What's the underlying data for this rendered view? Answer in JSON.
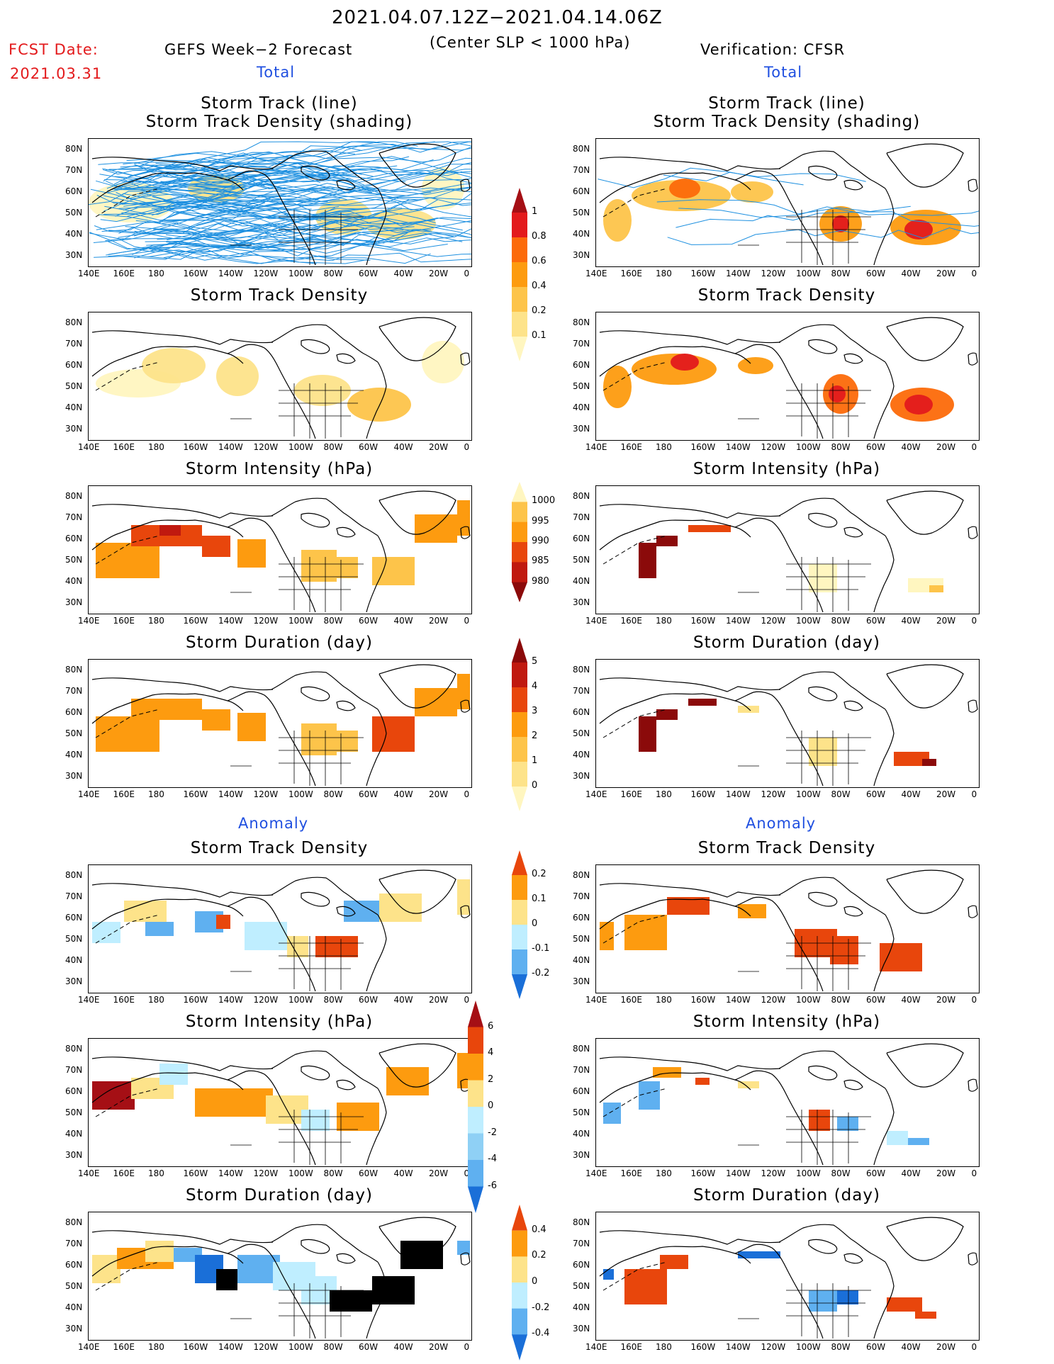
{
  "header": {
    "period": "2021.04.07.12Z−2021.04.14.06Z",
    "criterion": "(Center SLP < 1000 hPa)",
    "fcst_label": "FCST Date:",
    "fcst_date": "2021.03.31",
    "left_title": "GEFS Week−2 Forecast",
    "right_title": "Verification: CFSR",
    "total_label": "Total",
    "anomaly_label": "Anomaly"
  },
  "axes": {
    "lat_labels": [
      "80N",
      "70N",
      "60N",
      "50N",
      "40N",
      "30N"
    ],
    "lon_labels": [
      "140E",
      "160E",
      "180",
      "160W",
      "140W",
      "120W",
      "100W",
      "80W",
      "60W",
      "40W",
      "20W",
      "0"
    ]
  },
  "panels": {
    "track_line_1": "Storm Track (line)",
    "track_line_2": "Storm Track Density (shading)",
    "density": "Storm Track Density",
    "intensity": "Storm Intensity (hPa)",
    "duration": "Storm Duration (day)"
  },
  "colorbars": {
    "total_density": {
      "labels": [
        "1",
        "0.8",
        "0.6",
        "0.4",
        "0.2",
        "0.1"
      ],
      "colors": [
        "#a50f15",
        "#e31a1c",
        "#fc6a0a",
        "#fd9b0f",
        "#fdc44a",
        "#fde38a",
        "#fff6c0"
      ]
    },
    "total_intensity": {
      "labels": [
        "1000",
        "995",
        "990",
        "985",
        "980"
      ],
      "colors": [
        "#fff6c0",
        "#fdc44a",
        "#fd9b0f",
        "#e8460c",
        "#c0190f",
        "#8b0a0a"
      ]
    },
    "total_duration": {
      "labels": [
        "5",
        "4",
        "3",
        "2",
        "1",
        "0"
      ],
      "colors": [
        "#8b0a0a",
        "#c0190f",
        "#e8460c",
        "#fd9b0f",
        "#fdc44a",
        "#fde38a",
        "#fff6c0"
      ]
    },
    "anom_density": {
      "labels": [
        "0.2",
        "0.1",
        "0",
        "-0.1",
        "-0.2"
      ],
      "colors": [
        "#e8460c",
        "#fd9b0f",
        "#fde38a",
        "#bfeeff",
        "#5fb0f0",
        "#1a6fd8"
      ]
    },
    "anom_intensity": {
      "labels": [
        "6",
        "4",
        "2",
        "0",
        "-2",
        "-4",
        "-6"
      ],
      "colors": [
        "#a50f15",
        "#e8460c",
        "#fd9b0f",
        "#fde38a",
        "#bfeeff",
        "#8fd0f5",
        "#5fb0f0",
        "#1a6fd8"
      ]
    },
    "anom_duration": {
      "labels": [
        "0.4",
        "0.2",
        "0",
        "-0.2",
        "-0.4"
      ],
      "colors": [
        "#e8460c",
        "#fd9b0f",
        "#fde38a",
        "#bfeeff",
        "#5fb0f0",
        "#1a6fd8"
      ]
    }
  },
  "colors": {
    "track_line": "#1e90e0",
    "coast": "#000000"
  }
}
